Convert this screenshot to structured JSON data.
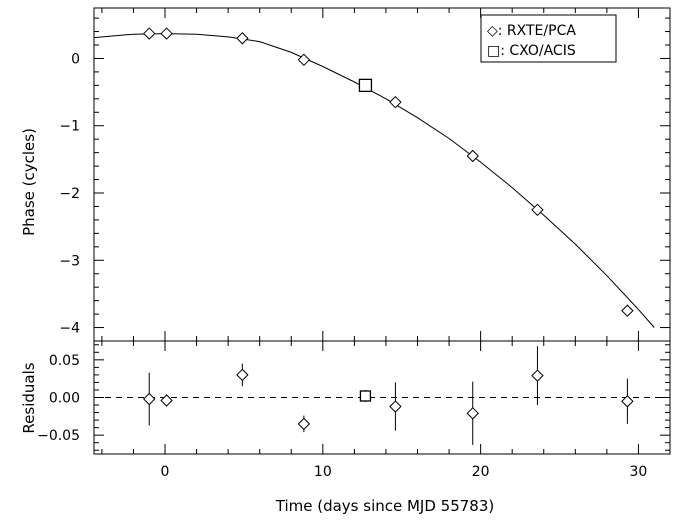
{
  "chart_data": [
    {
      "type": "scatter",
      "panel": "top",
      "xlabel": "",
      "ylabel": "Phase (cycles)",
      "xlim": [
        -4.5,
        32
      ],
      "ylim": [
        -4.2,
        0.75
      ],
      "yticks": [
        0,
        -1,
        -2,
        -3,
        -4
      ],
      "ytick_labels": [
        "0",
        "−1",
        "−2",
        "−3",
        "−4"
      ],
      "legend": {
        "position": "top-right",
        "entries": [
          {
            "marker": "diamond",
            "label": "◇: RXTE/PCA"
          },
          {
            "marker": "square",
            "label": "□: CXO/ACIS"
          }
        ]
      },
      "series": [
        {
          "name": "RXTE/PCA",
          "marker": "diamond",
          "x": [
            -1.0,
            0.1,
            4.9,
            8.8,
            14.6,
            19.5,
            23.6,
            29.3
          ],
          "y": [
            0.37,
            0.37,
            0.3,
            -0.02,
            -0.65,
            -1.45,
            -2.25,
            -3.75
          ]
        },
        {
          "name": "CXO/ACIS",
          "marker": "square",
          "x": [
            12.7
          ],
          "y": [
            -0.4
          ]
        }
      ],
      "model": {
        "type": "line",
        "x": [
          -4.5,
          -2,
          0,
          2,
          4,
          6,
          8,
          10,
          12,
          14,
          16,
          18,
          20,
          22,
          24,
          26,
          28,
          30,
          31.0
        ],
        "y": [
          0.31,
          0.36,
          0.37,
          0.36,
          0.32,
          0.25,
          0.09,
          -0.12,
          -0.35,
          -0.6,
          -0.88,
          -1.19,
          -1.54,
          -1.92,
          -2.33,
          -2.76,
          -3.23,
          -3.73,
          -4.0
        ]
      }
    },
    {
      "type": "scatter",
      "panel": "bottom",
      "xlabel": "Time (days since MJD 55783)",
      "ylabel": "Residuals",
      "xlim": [
        -4.5,
        32
      ],
      "ylim": [
        -0.075,
        0.075
      ],
      "xticks": [
        0,
        10,
        20,
        30
      ],
      "xtick_labels": [
        "0",
        "10",
        "20",
        "30"
      ],
      "yticks": [
        0.05,
        0.0,
        -0.05
      ],
      "ytick_labels": [
        "0.05",
        "0.00",
        "−0.05"
      ],
      "reference_line": {
        "y": 0.0,
        "style": "dashed"
      },
      "series": [
        {
          "name": "RXTE/PCA",
          "marker": "diamond",
          "x": [
            -1.0,
            0.1,
            4.9,
            8.8,
            14.6,
            19.5,
            23.6,
            29.3
          ],
          "y": [
            -0.002,
            -0.004,
            0.03,
            -0.035,
            -0.012,
            -0.021,
            0.029,
            -0.005
          ],
          "yerr": [
            0.035,
            0.008,
            0.015,
            0.011,
            0.032,
            0.042,
            0.039,
            0.03
          ]
        },
        {
          "name": "CXO/ACIS",
          "marker": "square",
          "x": [
            12.7
          ],
          "y": [
            0.002
          ],
          "yerr": [
            0.008
          ]
        }
      ]
    }
  ]
}
